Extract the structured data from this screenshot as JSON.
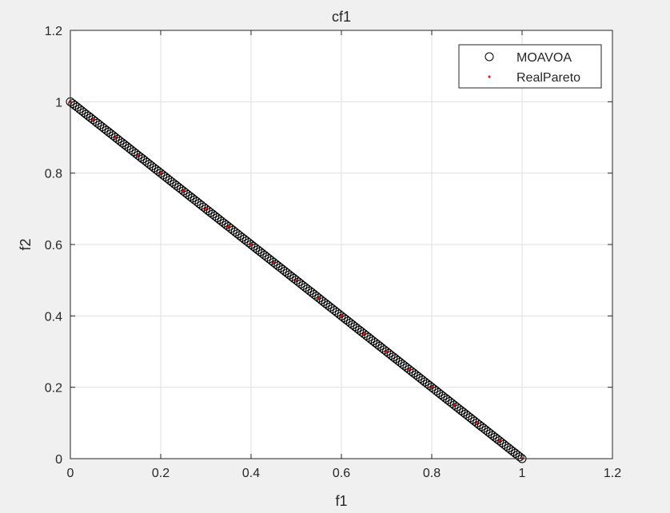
{
  "chart_data": {
    "type": "scatter",
    "title": "cf1",
    "xlabel": "f1",
    "ylabel": "f2",
    "xlim": [
      0,
      1.2
    ],
    "ylim": [
      0,
      1.2
    ],
    "xticks": [
      "0",
      "0.2",
      "0.4",
      "0.6",
      "0.8",
      "1",
      "1.2"
    ],
    "yticks": [
      "0",
      "0.2",
      "0.4",
      "0.6",
      "0.8",
      "1",
      "1.2"
    ],
    "grid": true,
    "legend_position": "top-right",
    "series": [
      {
        "name": "MOAVOA",
        "marker": "circle-open",
        "color": "#000000",
        "x": [
          0,
          0.005,
          0.01,
          0.015,
          0.02,
          0.025,
          0.03,
          0.035,
          0.04,
          0.045,
          0.05,
          0.055,
          0.06,
          0.065,
          0.07,
          0.075,
          0.08,
          0.085,
          0.09,
          0.095,
          0.1,
          0.105,
          0.11,
          0.115,
          0.12,
          0.125,
          0.13,
          0.135,
          0.14,
          0.145,
          0.15,
          0.155,
          0.16,
          0.165,
          0.17,
          0.175,
          0.18,
          0.185,
          0.19,
          0.195,
          0.2,
          0.205,
          0.21,
          0.215,
          0.22,
          0.225,
          0.23,
          0.235,
          0.24,
          0.245,
          0.25,
          0.255,
          0.26,
          0.265,
          0.27,
          0.275,
          0.28,
          0.285,
          0.29,
          0.295,
          0.3,
          0.305,
          0.31,
          0.315,
          0.32,
          0.325,
          0.33,
          0.335,
          0.34,
          0.345,
          0.35,
          0.355,
          0.36,
          0.365,
          0.37,
          0.375,
          0.38,
          0.385,
          0.39,
          0.395,
          0.4,
          0.405,
          0.41,
          0.415,
          0.42,
          0.425,
          0.43,
          0.435,
          0.44,
          0.445,
          0.45,
          0.455,
          0.46,
          0.465,
          0.47,
          0.475,
          0.48,
          0.485,
          0.49,
          0.495,
          0.5,
          0.505,
          0.51,
          0.515,
          0.52,
          0.525,
          0.53,
          0.535,
          0.54,
          0.545,
          0.55,
          0.555,
          0.56,
          0.565,
          0.57,
          0.575,
          0.58,
          0.585,
          0.59,
          0.595,
          0.6,
          0.605,
          0.61,
          0.615,
          0.62,
          0.625,
          0.63,
          0.635,
          0.64,
          0.645,
          0.65,
          0.655,
          0.66,
          0.665,
          0.67,
          0.675,
          0.68,
          0.685,
          0.69,
          0.695,
          0.7,
          0.705,
          0.71,
          0.715,
          0.72,
          0.725,
          0.73,
          0.735,
          0.74,
          0.745,
          0.75,
          0.755,
          0.76,
          0.765,
          0.77,
          0.775,
          0.78,
          0.785,
          0.79,
          0.795,
          0.8,
          0.805,
          0.81,
          0.815,
          0.82,
          0.825,
          0.83,
          0.835,
          0.84,
          0.845,
          0.85,
          0.855,
          0.86,
          0.865,
          0.87,
          0.875,
          0.88,
          0.885,
          0.89,
          0.895,
          0.9,
          0.905,
          0.91,
          0.915,
          0.92,
          0.925,
          0.93,
          0.935,
          0.94,
          0.945,
          0.95,
          0.955,
          0.96,
          0.965,
          0.97,
          0.975,
          0.98,
          0.985,
          0.99,
          0.995,
          1
        ],
        "y": [
          1,
          0.995,
          0.99,
          0.985,
          0.98,
          0.975,
          0.97,
          0.965,
          0.96,
          0.955,
          0.95,
          0.945,
          0.94,
          0.935,
          0.93,
          0.925,
          0.92,
          0.915,
          0.91,
          0.905,
          0.9,
          0.895,
          0.89,
          0.885,
          0.88,
          0.875,
          0.87,
          0.865,
          0.86,
          0.855,
          0.85,
          0.845,
          0.84,
          0.835,
          0.83,
          0.825,
          0.82,
          0.815,
          0.81,
          0.805,
          0.8,
          0.795,
          0.79,
          0.785,
          0.78,
          0.775,
          0.77,
          0.765,
          0.76,
          0.755,
          0.75,
          0.745,
          0.74,
          0.735,
          0.73,
          0.725,
          0.72,
          0.715,
          0.71,
          0.705,
          0.7,
          0.695,
          0.69,
          0.685,
          0.68,
          0.675,
          0.67,
          0.665,
          0.66,
          0.655,
          0.65,
          0.645,
          0.64,
          0.635,
          0.63,
          0.625,
          0.62,
          0.615,
          0.61,
          0.605,
          0.6,
          0.595,
          0.59,
          0.585,
          0.58,
          0.575,
          0.57,
          0.565,
          0.56,
          0.555,
          0.55,
          0.545,
          0.54,
          0.535,
          0.53,
          0.525,
          0.52,
          0.515,
          0.51,
          0.505,
          0.5,
          0.495,
          0.49,
          0.485,
          0.48,
          0.475,
          0.47,
          0.465,
          0.46,
          0.455,
          0.45,
          0.445,
          0.44,
          0.435,
          0.43,
          0.425,
          0.42,
          0.415,
          0.41,
          0.405,
          0.4,
          0.395,
          0.39,
          0.385,
          0.38,
          0.375,
          0.37,
          0.365,
          0.36,
          0.355,
          0.35,
          0.345,
          0.34,
          0.335,
          0.33,
          0.325,
          0.32,
          0.315,
          0.31,
          0.305,
          0.3,
          0.295,
          0.29,
          0.285,
          0.28,
          0.275,
          0.27,
          0.265,
          0.26,
          0.255,
          0.25,
          0.245,
          0.24,
          0.235,
          0.23,
          0.225,
          0.22,
          0.215,
          0.21,
          0.205,
          0.2,
          0.195,
          0.19,
          0.185,
          0.18,
          0.175,
          0.17,
          0.165,
          0.16,
          0.155,
          0.15,
          0.145,
          0.14,
          0.135,
          0.13,
          0.125,
          0.12,
          0.115,
          0.11,
          0.105,
          0.1,
          0.095,
          0.09,
          0.085,
          0.08,
          0.075,
          0.07,
          0.065,
          0.06,
          0.055,
          0.05,
          0.045,
          0.04,
          0.035,
          0.03,
          0.025,
          0.02,
          0.015,
          0.01,
          0.005,
          0
        ]
      },
      {
        "name": "RealPareto",
        "marker": "dot",
        "color": "#ff0000",
        "x": [
          0,
          0.05,
          0.1,
          0.15,
          0.2,
          0.25,
          0.3,
          0.35,
          0.4,
          0.45,
          0.5,
          0.55,
          0.6,
          0.65,
          0.7,
          0.75,
          0.8,
          0.85,
          0.9,
          0.95,
          1
        ],
        "y": [
          1,
          0.95,
          0.9,
          0.85,
          0.8,
          0.75,
          0.7,
          0.65,
          0.6,
          0.55,
          0.5,
          0.45,
          0.4,
          0.35,
          0.3,
          0.25,
          0.2,
          0.15,
          0.1,
          0.05,
          0
        ]
      }
    ]
  }
}
